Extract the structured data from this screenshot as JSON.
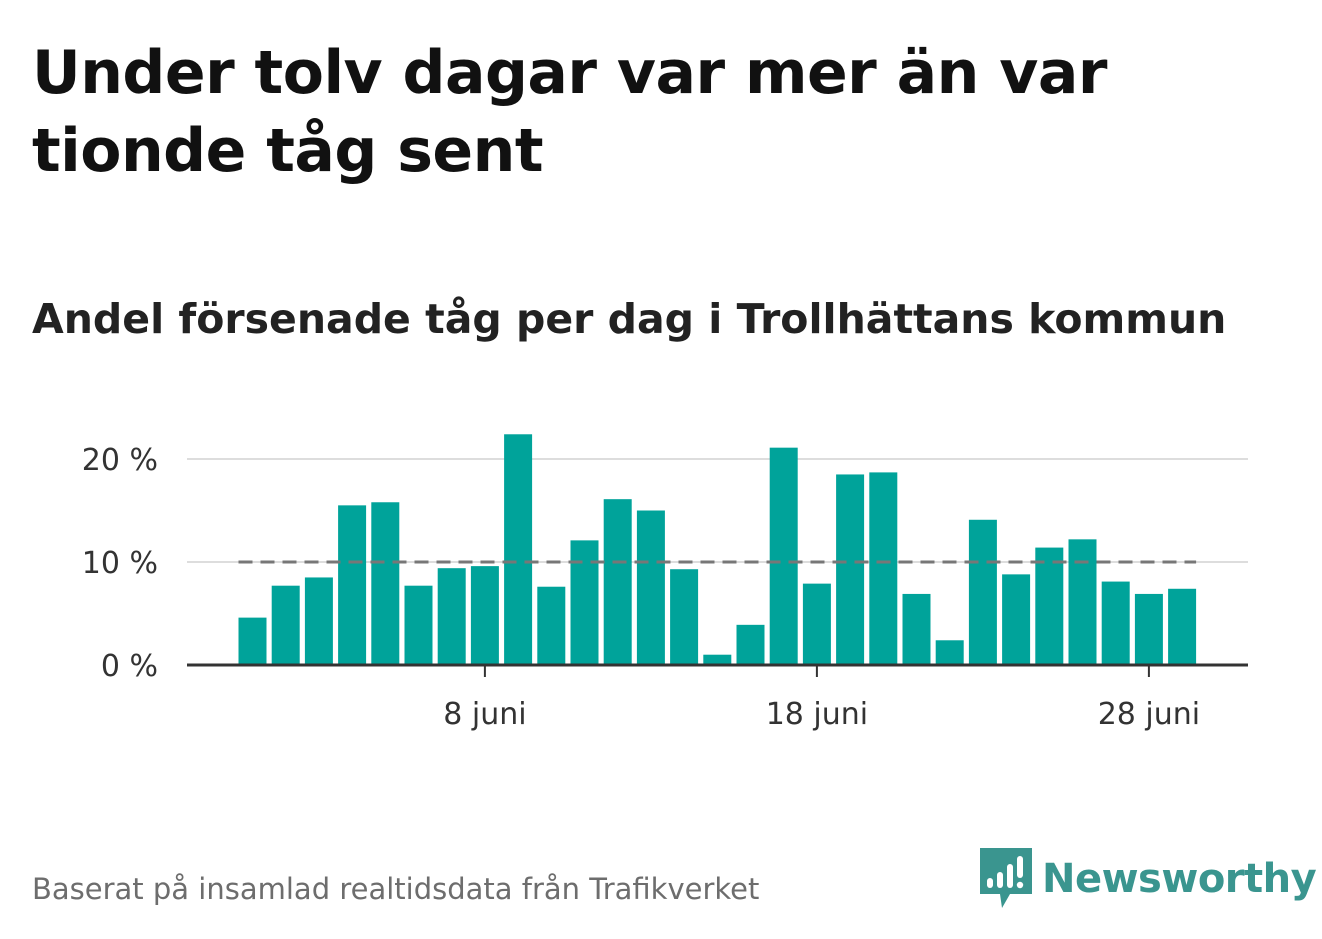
{
  "title": "Under tolv dagar var mer än var tionde tåg sent",
  "subtitle": "Andel försenade tåg per dag i Trollhättans kommun",
  "footer": "Baserat på insamlad realtidsdata från Trafikverket",
  "brand": {
    "name": "Newsworthy",
    "color": "#3a958f",
    "icon": "newsworthy-logo-icon"
  },
  "colors": {
    "bar": "#00a39a",
    "reference_line": "#777777",
    "grid": "#dddddd",
    "axis": "#333333"
  },
  "chart_data": {
    "type": "bar",
    "x": [
      "1 juni",
      "2 juni",
      "3 juni",
      "4 juni",
      "5 juni",
      "6 juni",
      "7 juni",
      "8 juni",
      "9 juni",
      "10 juni",
      "11 juni",
      "12 juni",
      "13 juni",
      "14 juni",
      "15 juni",
      "16 juni",
      "17 juni",
      "18 juni",
      "19 juni",
      "20 juni",
      "21 juni",
      "22 juni",
      "23 juni",
      "24 juni",
      "25 juni",
      "26 juni",
      "27 juni",
      "28 juni",
      "29 juni"
    ],
    "values": [
      4.6,
      7.7,
      8.5,
      15.5,
      15.8,
      7.7,
      9.4,
      9.6,
      22.4,
      7.6,
      12.1,
      16.1,
      15.0,
      9.3,
      1.0,
      3.9,
      21.1,
      7.9,
      18.5,
      18.7,
      6.9,
      2.4,
      14.1,
      8.8,
      11.4,
      12.2,
      8.1,
      6.9,
      7.4
    ],
    "reference_line": 10,
    "y_ticks": [
      0,
      10,
      20
    ],
    "y_tick_labels": [
      "0 %",
      "10 %",
      "20 %"
    ],
    "x_ticks": [
      "8 juni",
      "18 juni",
      "28 juni"
    ],
    "ylim": [
      0,
      23
    ],
    "grid": true
  }
}
